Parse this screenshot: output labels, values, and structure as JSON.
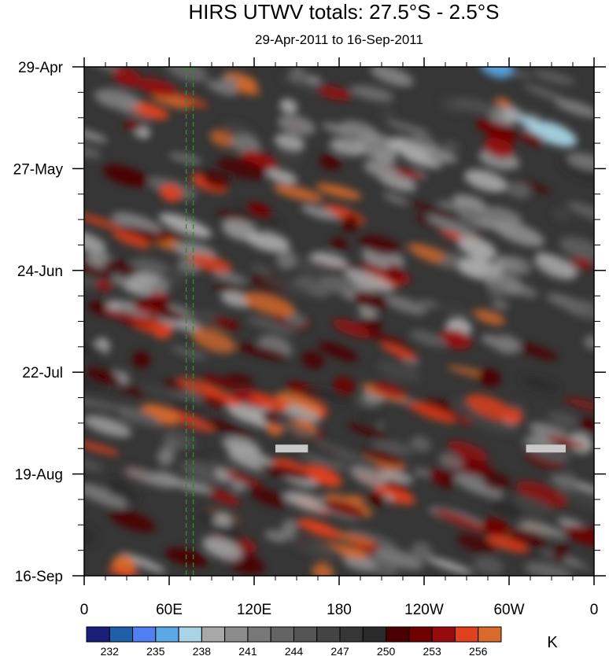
{
  "chart_data": {
    "type": "heatmap",
    "title": "HIRS UTWV totals: 27.5°S - 2.5°S",
    "subtitle": "29-Apr-2011 to 16-Sep-2011",
    "x_ticks": [
      "0",
      "60E",
      "120E",
      "180",
      "120W",
      "60W",
      "0"
    ],
    "x_range": [
      0,
      360
    ],
    "y_ticks": [
      "29-Apr",
      "27-May",
      "24-Jun",
      "22-Jul",
      "19-Aug",
      "16-Sep"
    ],
    "y_range": [
      "29-Apr-2011",
      "16-Sep-2011"
    ],
    "colorbar": {
      "unit": "K",
      "levels": [
        231,
        232,
        233.5,
        235,
        236.5,
        238,
        239.5,
        241,
        242.5,
        244,
        245.5,
        247,
        248.5,
        250,
        251.5,
        253,
        254.5,
        256,
        257.5
      ],
      "labels": [
        "232",
        "235",
        "238",
        "241",
        "244",
        "247",
        "250",
        "253",
        "256"
      ],
      "colors": [
        "#1a1f7a",
        "#1f5fa8",
        "#4f7ff0",
        "#5aa9e6",
        "#a8d4e6",
        "#a8a8a8",
        "#8c8c8c",
        "#787878",
        "#646464",
        "#545454",
        "#444444",
        "#363636",
        "#2a2a2a",
        "#4a0000",
        "#6e0000",
        "#960c0c",
        "#e0401c",
        "#d86a2a"
      ]
    },
    "reference_lines_lon": [
      72,
      77
    ],
    "missing_segments": [
      {
        "lon_range": [
          135,
          158
        ],
        "date": "12-Aug"
      },
      {
        "lon_range": [
          312,
          340
        ],
        "date": "12-Aug"
      }
    ]
  }
}
